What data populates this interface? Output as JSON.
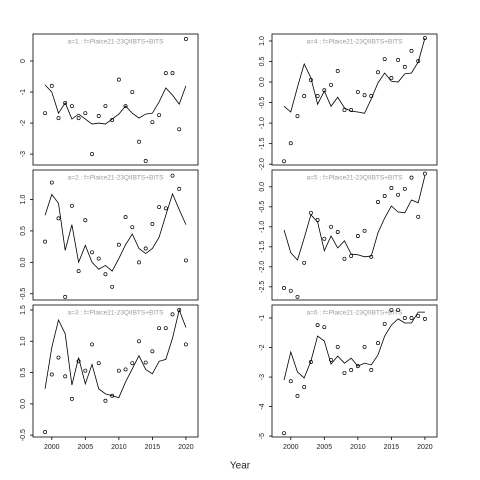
{
  "xlabel": "Year",
  "chart_data": [
    {
      "type": "line",
      "title": "a=1 : f=Plaice21-23QIIBTS+BITS",
      "x": [
        1999,
        2000,
        2001,
        2002,
        2003,
        2004,
        2005,
        2006,
        2007,
        2008,
        2009,
        2010,
        2011,
        2012,
        2013,
        2014,
        2015,
        2016,
        2017,
        2018,
        2019,
        2020
      ],
      "xlim": [
        1997.2,
        2021.8
      ],
      "ylim": [
        -3.35,
        0.87
      ],
      "yticks": [
        0,
        -1,
        -2,
        -3
      ],
      "series": [
        {
          "mode": "points",
          "color": "#000000",
          "values": [
            -1.68,
            -0.8,
            -1.84,
            -1.35,
            -1.45,
            -1.84,
            -1.68,
            -3.0,
            -1.77,
            -1.45,
            -1.9,
            -0.6,
            -1.45,
            -1.0,
            -2.6,
            -3.22,
            -1.97,
            -1.74,
            -0.39,
            -0.39,
            -2.2,
            0.71
          ]
        },
        {
          "mode": "line",
          "color": "#000000",
          "values": [
            -0.77,
            -1.0,
            -1.68,
            -1.35,
            -1.87,
            -1.71,
            -1.87,
            -2.03,
            -2.0,
            -2.03,
            -1.87,
            -1.71,
            -1.45,
            -1.68,
            -1.84,
            -1.71,
            -1.68,
            -1.32,
            -0.87,
            -1.1,
            -1.39,
            -0.8
          ]
        }
      ]
    },
    {
      "type": "line",
      "title": "a=2 : f=Plaice21-23QIIBTS+BITS",
      "x": [
        1999,
        2000,
        2001,
        2002,
        2003,
        2004,
        2005,
        2006,
        2007,
        2008,
        2009,
        2010,
        2011,
        2012,
        2013,
        2014,
        2015,
        2016,
        2017,
        2018,
        2019,
        2020
      ],
      "xlim": [
        1997.2,
        2021.8
      ],
      "ylim": [
        -0.6,
        1.47
      ],
      "yticks": [
        {
          "value": 1,
          "label": "1.0"
        },
        0.5,
        {
          "value": 0,
          "label": "0.0"
        },
        -0.5
      ],
      "series": [
        {
          "mode": "points",
          "color": "#000000",
          "values": [
            0.33,
            1.27,
            0.7,
            -0.55,
            0.9,
            -0.14,
            0.67,
            0.16,
            0.06,
            -0.19,
            -0.39,
            0.28,
            0.72,
            0.56,
            0,
            0.22,
            0.61,
            0.88,
            0.86,
            1.38,
            1.17,
            0.03
          ]
        },
        {
          "mode": "line",
          "color": "#000000",
          "values": [
            0.75,
            1.08,
            0.94,
            0.19,
            0.6,
            0,
            0.27,
            0,
            -0.11,
            -0.05,
            -0.14,
            0.06,
            0.28,
            0.45,
            0.22,
            0.14,
            0.22,
            0.4,
            0.75,
            1.09,
            0.84,
            0.6
          ]
        }
      ]
    },
    {
      "type": "line",
      "title": "a=3 : f=Plaice21-23QIIBTS+BITS",
      "x": [
        1999,
        2000,
        2001,
        2002,
        2003,
        2004,
        2005,
        2006,
        2007,
        2008,
        2009,
        2010,
        2011,
        2012,
        2013,
        2014,
        2015,
        2016,
        2017,
        2018,
        2019,
        2020
      ],
      "xlim": [
        1997.2,
        2021.8
      ],
      "xticks": [
        2000,
        2005,
        2010,
        2015,
        2020
      ],
      "ylim": [
        -0.53,
        1.58
      ],
      "yticks": [
        1.5,
        {
          "value": 1,
          "label": "1.0"
        },
        0.5,
        {
          "value": 0,
          "label": "0.0"
        },
        -0.5
      ],
      "series": [
        {
          "mode": "points",
          "color": "#000000",
          "values": [
            -0.45,
            0.47,
            0.74,
            0.44,
            0.08,
            0.68,
            0.53,
            0.95,
            0.65,
            0.05,
            0.13,
            0.53,
            0.55,
            0.65,
            1.0,
            0.66,
            0.84,
            1.21,
            1.21,
            1.43,
            1.5,
            0.95
          ]
        },
        {
          "mode": "line",
          "color": "#000000",
          "values": [
            0.24,
            0.9,
            1.34,
            1.12,
            0.3,
            0.74,
            0.32,
            0.63,
            0.24,
            0.16,
            0.13,
            0.1,
            0.35,
            0.56,
            0.77,
            0.55,
            0.48,
            0.68,
            0.71,
            1.05,
            1.5,
            1.22
          ]
        }
      ]
    },
    {
      "type": "line",
      "title": "a=4 : f=Plaice21-23QIIBTS+BITS",
      "x": [
        1999,
        2000,
        2001,
        2002,
        2003,
        2004,
        2005,
        2006,
        2007,
        2008,
        2009,
        2010,
        2011,
        2012,
        2013,
        2014,
        2015,
        2016,
        2017,
        2018,
        2019,
        2020
      ],
      "xlim": [
        1997.2,
        2021.8
      ],
      "ylim": [
        -2.02,
        1.17
      ],
      "yticks": [
        {
          "value": 1,
          "label": "1.0"
        },
        0.5,
        {
          "value": 0,
          "label": "0.0"
        },
        -0.5,
        {
          "value": -1,
          "label": "-1.0"
        },
        -1.5,
        {
          "value": -2,
          "label": "-2.0"
        }
      ],
      "series": [
        {
          "mode": "points",
          "color": "#000000",
          "values": [
            -1.93,
            -1.49,
            -0.83,
            -0.34,
            0.05,
            -0.34,
            -0.2,
            -0.07,
            0.27,
            -0.68,
            -0.68,
            -0.24,
            -0.32,
            -0.34,
            0.24,
            0.56,
            0.1,
            0.54,
            0.37,
            0.76,
            0.51,
            1.07
          ]
        },
        {
          "mode": "line",
          "color": "#000000",
          "values": [
            -0.59,
            -0.73,
            -0.12,
            0.44,
            0.1,
            -0.54,
            -0.22,
            -0.59,
            -0.37,
            -0.63,
            -0.71,
            -0.73,
            -0.76,
            -0.41,
            -0.02,
            0.22,
            0.02,
            0,
            0.2,
            0.22,
            0.49,
            1.07
          ]
        }
      ]
    },
    {
      "type": "line",
      "title": "a=5 : f=Plaice21-23QIIBTS+BITS",
      "x": [
        1999,
        2000,
        2001,
        2002,
        2003,
        2004,
        2005,
        2006,
        2007,
        2008,
        2009,
        2010,
        2011,
        2012,
        2013,
        2014,
        2015,
        2016,
        2017,
        2018,
        2019,
        2020
      ],
      "xlim": [
        1997.2,
        2021.8
      ],
      "ylim": [
        -2.83,
        0.42
      ],
      "yticks": [
        {
          "value": 0,
          "label": "0.0"
        },
        -0.5,
        {
          "value": -1,
          "label": "-1.0"
        },
        -1.5,
        {
          "value": -2,
          "label": "-2.0"
        },
        -2.5
      ],
      "series": [
        {
          "mode": "points",
          "color": "#000000",
          "values": [
            -2.53,
            -2.6,
            -2.75,
            -1.9,
            -0.65,
            -0.83,
            -1.3,
            -1.0,
            -1.13,
            -1.8,
            -1.73,
            -1.23,
            -1.1,
            -1.75,
            -0.38,
            -0.23,
            -0.03,
            -0.2,
            -0.05,
            0.23,
            -0.75,
            0.33
          ]
        },
        {
          "mode": "line",
          "color": "#000000",
          "values": [
            -1.08,
            -1.65,
            -1.83,
            -1.28,
            -0.7,
            -0.88,
            -1.6,
            -1.23,
            -1.53,
            -1.35,
            -1.68,
            -1.7,
            -1.75,
            -1.73,
            -1.15,
            -0.78,
            -0.48,
            -0.63,
            -0.65,
            -0.33,
            -0.4,
            0.28
          ]
        }
      ]
    },
    {
      "type": "line",
      "title": "a=6 : f=Plaice21-23QIIBTS+BITS",
      "x": [
        1999,
        2000,
        2001,
        2002,
        2003,
        2004,
        2005,
        2006,
        2007,
        2008,
        2009,
        2010,
        2011,
        2012,
        2013,
        2014,
        2015,
        2016,
        2017,
        2018,
        2019,
        2020
      ],
      "xlim": [
        1997.2,
        2021.8
      ],
      "xticks": [
        2000,
        2005,
        2010,
        2015,
        2020
      ],
      "ylim": [
        -5.03,
        -0.56
      ],
      "yticks": [
        -1,
        -2,
        -3,
        -4,
        -5
      ],
      "series": [
        {
          "mode": "points",
          "color": "#000000",
          "values": [
            -4.9,
            -3.14,
            -3.64,
            -3.34,
            -2.49,
            -1.24,
            -1.31,
            -2.42,
            -1.98,
            -2.86,
            -2.76,
            -2.63,
            -1.98,
            -2.76,
            -1.85,
            -1.2,
            -0.73,
            -0.73,
            -1.0,
            -1.0,
            -0.93,
            -1.03
          ]
        },
        {
          "mode": "line",
          "color": "#000000",
          "values": [
            -3.1,
            -2.15,
            -2.83,
            -3.03,
            -2.46,
            -1.61,
            -1.78,
            -2.56,
            -2.29,
            -2.53,
            -2.36,
            -2.63,
            -2.53,
            -2.59,
            -2.25,
            -1.61,
            -1.24,
            -1.03,
            -1.17,
            -1.17,
            -0.8,
            -0.8
          ]
        }
      ]
    }
  ]
}
